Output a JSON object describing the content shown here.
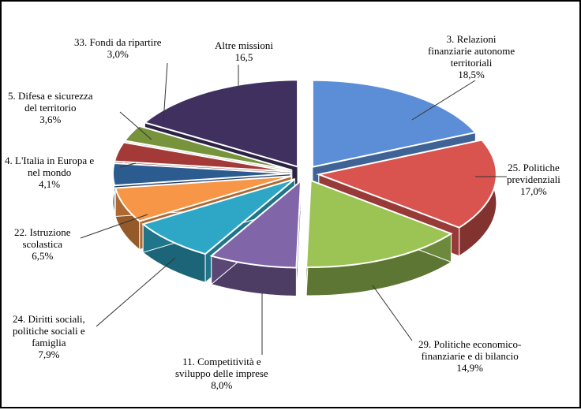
{
  "chart_data": {
    "type": "pie",
    "title": "",
    "slices": [
      {
        "label": [
          "3. Relazioni",
          "finanziarie autonome",
          "territoriali"
        ],
        "value_label": "18,5%",
        "value": 18.5,
        "color": "#5b8ed6"
      },
      {
        "label": [
          "25. Politiche",
          "previdenziali"
        ],
        "value_label": "17,0%",
        "value": 17.0,
        "color": "#d9534f"
      },
      {
        "label": [
          "29. Politiche economico-",
          "finanziarie e di bilancio"
        ],
        "value_label": "14,9%",
        "value": 14.9,
        "color": "#9bc455"
      },
      {
        "label": [
          "11. Competitività e",
          "sviluppo delle imprese"
        ],
        "value_label": "8,0%",
        "value": 8.0,
        "color": "#8066a8"
      },
      {
        "label": [
          "24. Diritti sociali,",
          "politiche sociali e",
          "famiglia"
        ],
        "value_label": "7,9%",
        "value": 7.9,
        "color": "#2ea7c7"
      },
      {
        "label": [
          "22. Istruzione",
          "scolastica"
        ],
        "value_label": "6,5%",
        "value": 6.5,
        "color": "#f79646"
      },
      {
        "label": [
          "4. L'Italia in Europa e",
          "nel mondo"
        ],
        "value_label": "4,1%",
        "value": 4.1,
        "color": "#2c5c8f"
      },
      {
        "label": [
          "5. Difesa e sicurezza",
          "del territorio"
        ],
        "value_label": "3,6%",
        "value": 3.6,
        "color": "#a33a37"
      },
      {
        "label": [
          "33. Fondi da ripartire"
        ],
        "value_label": "3,0%",
        "value": 3.0,
        "color": "#77933c"
      },
      {
        "label": [
          "Altre missioni"
        ],
        "value_label": "16,5",
        "value": 16.5,
        "color": "#3f3060"
      }
    ]
  }
}
